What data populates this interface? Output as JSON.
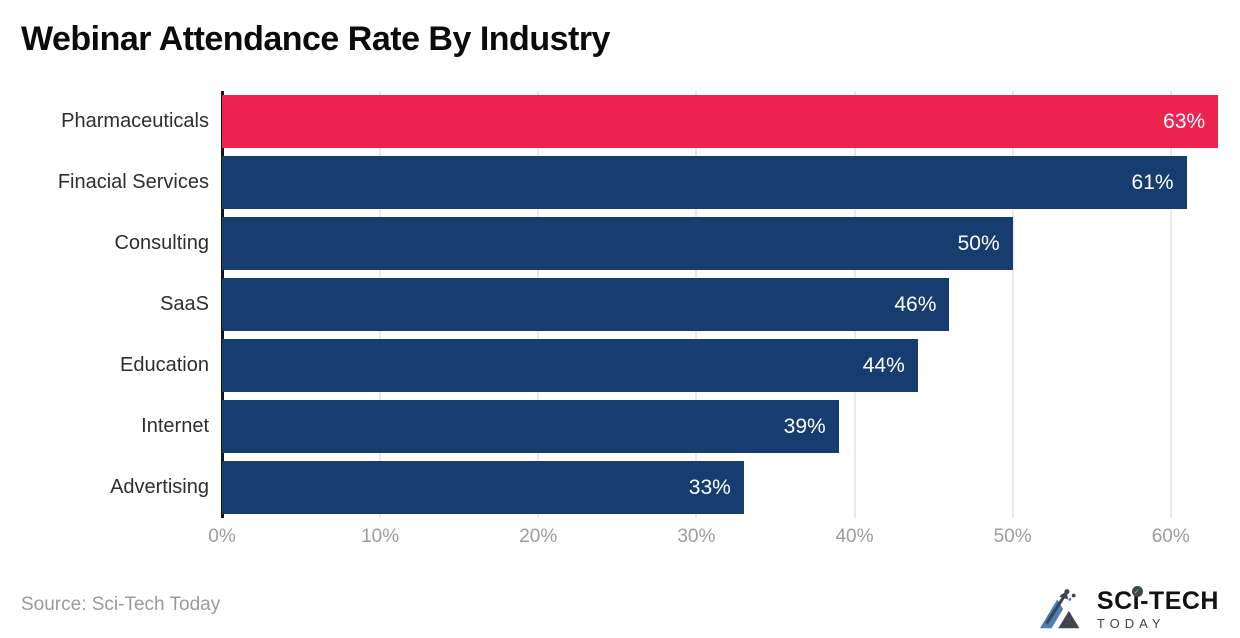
{
  "title": "Webinar Attendance Rate By Industry",
  "source": "Source: Sci-Tech Today",
  "logo": {
    "primary_left": "SC",
    "primary_i": "I",
    "primary_right": "-TECH",
    "check": "✓",
    "secondary": "TODAY"
  },
  "colors": {
    "bar": "#173d70",
    "highlight": "#ee2450",
    "gridline": "#e9e9e9",
    "axis_line": "#141414",
    "tick_label": "#9c9c9c",
    "category_label": "#2e2e2e",
    "value_label": "#ffffff",
    "logo_blue": "#4a7eb5",
    "logo_dark": "#3d464d"
  },
  "chart_data": {
    "type": "bar",
    "orientation": "horizontal",
    "title": "Webinar Attendance Rate By Industry",
    "xlabel": "",
    "ylabel": "",
    "categories": [
      "Pharmaceuticals",
      "Finacial Services",
      "Consulting",
      "SaaS",
      "Education",
      "Internet",
      "Advertising"
    ],
    "values": [
      63,
      61,
      50,
      46,
      44,
      39,
      33
    ],
    "value_labels": [
      "63%",
      "61%",
      "50%",
      "46%",
      "44%",
      "39%",
      "33%"
    ],
    "highlight_index": 0,
    "xlim": [
      0,
      64
    ],
    "x_ticks": [
      "0%",
      "10%",
      "20%",
      "30%",
      "40%",
      "50%",
      "60%"
    ],
    "x_tick_values": [
      0,
      10,
      20,
      30,
      40,
      50,
      60
    ],
    "grid": "vertical",
    "legend": "none"
  }
}
